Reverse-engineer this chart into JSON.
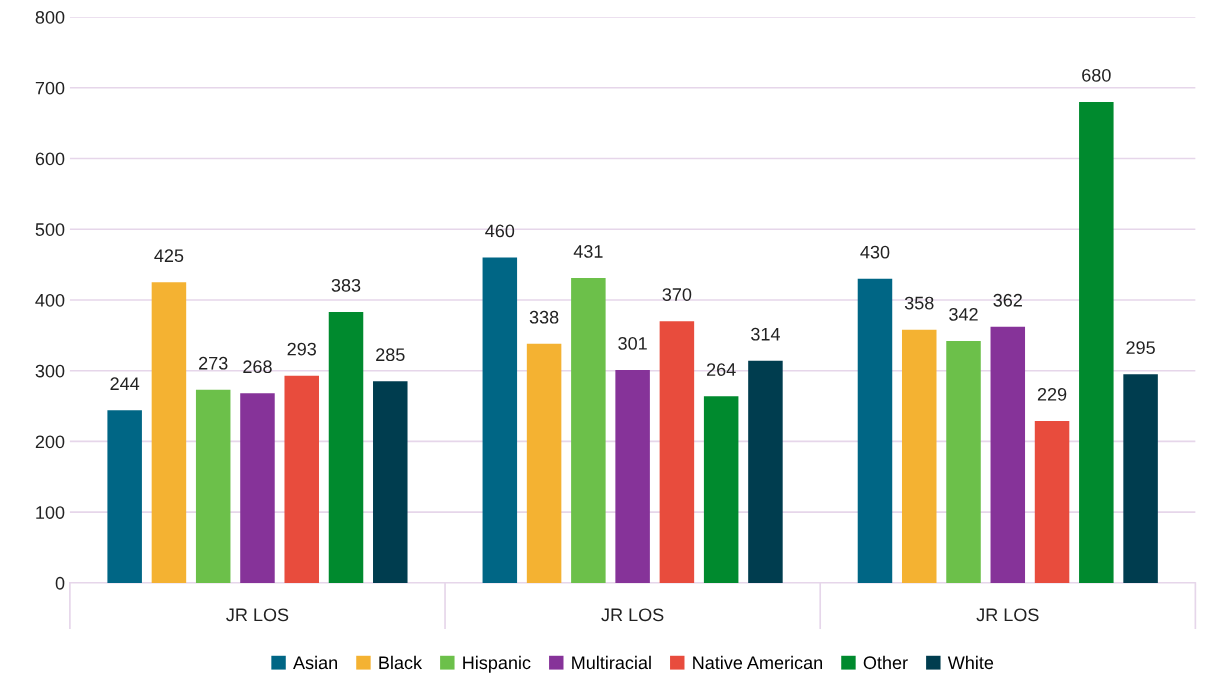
{
  "chart_data": {
    "type": "bar",
    "categories": [
      "JR LOS",
      "JR LOS",
      "JR LOS"
    ],
    "series": [
      {
        "name": "Asian",
        "color": "#006685",
        "values": [
          244,
          460,
          430
        ]
      },
      {
        "name": "Black",
        "color": "#f4b232",
        "values": [
          425,
          338,
          358
        ]
      },
      {
        "name": "Hispanic",
        "color": "#6cc04a",
        "values": [
          273,
          431,
          342
        ]
      },
      {
        "name": "Multiracial",
        "color": "#863399",
        "values": [
          268,
          301,
          362
        ]
      },
      {
        "name": "Native American",
        "color": "#e84c3d",
        "values": [
          293,
          370,
          229
        ]
      },
      {
        "name": "Other",
        "color": "#008a2e",
        "values": [
          383,
          264,
          680
        ]
      },
      {
        "name": "White",
        "color": "#003d4f",
        "values": [
          285,
          314,
          295
        ]
      }
    ],
    "ylim": [
      0,
      800
    ],
    "yticks": [
      0,
      100,
      200,
      300,
      400,
      500,
      600,
      700,
      800
    ],
    "grid": "y",
    "legend": "bottom",
    "data_labels": true
  }
}
